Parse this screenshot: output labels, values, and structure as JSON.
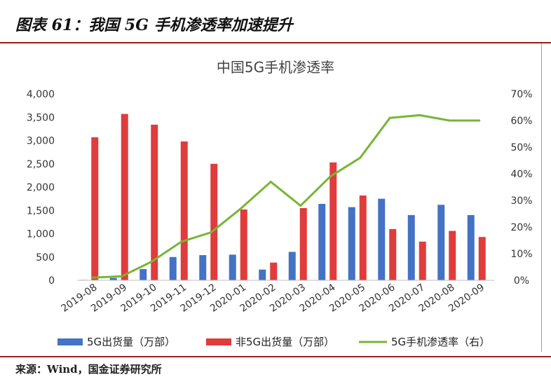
{
  "figure_title": "图表 61：我国 5G 手机渗透率加速提升",
  "source": "来源：Wind，国金证券研究所",
  "colors": {
    "bar_5g": "#4472c4",
    "bar_non5g": "#e03c3c",
    "line": "#77b634",
    "axis": "#bfbfbf"
  },
  "chart_data": {
    "type": "bar",
    "title": "中国5G手机渗透率",
    "categories": [
      "2019-08",
      "2019-09",
      "2019-10",
      "2019-11",
      "2019-12",
      "2020-01",
      "2020-02",
      "2020-03",
      "2020-04",
      "2020-05",
      "2020-06",
      "2020-07",
      "2020-08",
      "2020-09"
    ],
    "series": [
      {
        "name": "5G出货量（万部）",
        "type": "bar",
        "axis": "left",
        "values": [
          10,
          50,
          240,
          500,
          540,
          550,
          230,
          610,
          1640,
          1570,
          1750,
          1400,
          1620,
          1400
        ]
      },
      {
        "name": "非5G出货量（万部）",
        "type": "bar",
        "axis": "left",
        "values": [
          3070,
          3570,
          3340,
          2980,
          2500,
          1520,
          380,
          1550,
          2530,
          1820,
          1100,
          830,
          1060,
          930
        ]
      },
      {
        "name": "5G手机渗透率（右）",
        "type": "line",
        "axis": "right",
        "values": [
          0.01,
          0.015,
          0.07,
          0.145,
          0.18,
          0.27,
          0.37,
          0.28,
          0.39,
          0.46,
          0.61,
          0.62,
          0.6,
          0.6
        ]
      }
    ],
    "ylim": [
      0,
      4000
    ],
    "yticks": [
      "0",
      "500",
      "1,000",
      "1,500",
      "2,000",
      "2,500",
      "3,000",
      "3,500",
      "4,000"
    ],
    "y2lim": [
      0,
      0.7
    ],
    "y2ticks": [
      "0%",
      "10%",
      "20%",
      "30%",
      "40%",
      "50%",
      "60%",
      "70%"
    ],
    "legend_position": "bottom",
    "grid": false
  }
}
